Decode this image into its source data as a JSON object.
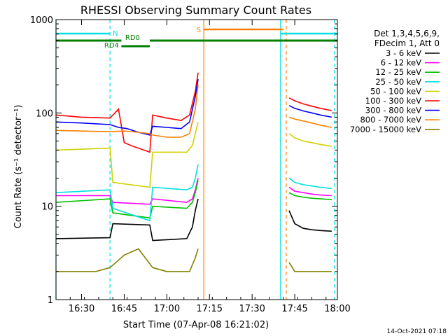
{
  "chart_data": {
    "type": "line",
    "title": "RHESSI Observing Summary Count Rates",
    "xlabel": "Start Time (07-Apr-08 16:21:02)",
    "ylabel": "Count Rate (s⁻¹ detector⁻¹)",
    "yscale": "log",
    "ylim": [
      1,
      1000
    ],
    "xlim": [
      "16:21",
      "18:00"
    ],
    "x_ticks": [
      "16:30",
      "16:45",
      "17:00",
      "17:15",
      "17:30",
      "17:45",
      "18:00"
    ],
    "y_ticks": [
      "1",
      "10",
      "100",
      "1000"
    ],
    "legend_placement": "right",
    "legend_header": [
      "Det 1,3,4,5,6,9,",
      "FDecim 1, Att 0"
    ],
    "series": [
      {
        "name": "3 - 6 keV",
        "color": "#000000",
        "x": [
          "16:21",
          "16:40",
          "16:41",
          "16:54",
          "16:55",
          "17:07",
          "17:09",
          "17:10",
          "17:11"
        ],
        "values": [
          4.5,
          4.6,
          6.5,
          6.3,
          4.3,
          4.5,
          6.0,
          9.0,
          12
        ],
        "x2": [
          "17:43",
          "17:45",
          "17:48",
          "17:51",
          "17:54",
          "17:58"
        ],
        "values2": [
          9.0,
          6.5,
          5.8,
          5.6,
          5.5,
          5.4
        ]
      },
      {
        "name": "6 - 12 keV",
        "color": "#ff00ff",
        "x": [
          "16:21",
          "16:40",
          "16:41",
          "16:54",
          "16:55",
          "17:07",
          "17:09",
          "17:10",
          "17:11"
        ],
        "values": [
          13,
          13,
          11,
          10.5,
          12,
          11,
          12,
          15,
          20
        ],
        "x2": [
          "17:43",
          "17:45",
          "17:48",
          "17:51",
          "17:54",
          "17:58"
        ],
        "values2": [
          16,
          14.5,
          14,
          13.5,
          13.2,
          13
        ]
      },
      {
        "name": "12 - 25 keV",
        "color": "#00c000",
        "x": [
          "16:21",
          "16:40",
          "16:41",
          "16:54",
          "16:55",
          "17:07",
          "17:09",
          "17:10",
          "17:11"
        ],
        "values": [
          11,
          12,
          8.5,
          7.5,
          10,
          9.5,
          11,
          14,
          19
        ],
        "x2": [
          "17:43",
          "17:45",
          "17:48",
          "17:51",
          "17:54",
          "17:58"
        ],
        "values2": [
          14,
          13,
          12.5,
          12.2,
          12,
          11.8
        ]
      },
      {
        "name": "25 - 50 keV",
        "color": "#00e0e0",
        "x": [
          "16:21",
          "16:40",
          "16:41",
          "16:54",
          "16:55",
          "17:07",
          "17:09",
          "17:10",
          "17:11"
        ],
        "values": [
          14,
          15,
          9.5,
          7,
          16,
          15,
          16,
          20,
          28
        ],
        "x2": [
          "17:43",
          "17:45",
          "17:48",
          "17:51",
          "17:54",
          "17:58"
        ],
        "values2": [
          20,
          18,
          17,
          16.5,
          16,
          15.5
        ]
      },
      {
        "name": "50 - 100 keV",
        "color": "#d0d000",
        "x": [
          "16:21",
          "16:40",
          "16:41",
          "16:54",
          "16:55",
          "17:07",
          "17:09",
          "17:10",
          "17:11"
        ],
        "values": [
          40,
          42,
          18,
          16,
          38,
          38,
          45,
          60,
          80
        ],
        "x2": [
          "17:43",
          "17:45",
          "17:48",
          "17:51",
          "17:54",
          "17:58"
        ],
        "values2": [
          60,
          54,
          50,
          48,
          46,
          44
        ]
      },
      {
        "name": "100 - 300 keV",
        "color": "#ff0000",
        "x": [
          "16:21",
          "16:30",
          "16:40",
          "16:43",
          "16:45",
          "16:48",
          "16:51",
          "16:54",
          "16:55",
          "17:00",
          "17:05",
          "17:08",
          "17:10",
          "17:11"
        ],
        "values": [
          95,
          90,
          88,
          110,
          48,
          44,
          41,
          38,
          95,
          88,
          83,
          95,
          170,
          270
        ],
        "x2": [
          "17:43",
          "17:45",
          "17:48",
          "17:51",
          "17:54",
          "17:58"
        ],
        "values2": [
          145,
          135,
          125,
          118,
          112,
          106
        ]
      },
      {
        "name": "300 - 800 keV",
        "color": "#0000ff",
        "x": [
          "16:21",
          "16:30",
          "16:40",
          "16:43",
          "16:46",
          "16:50",
          "16:54",
          "16:55",
          "17:00",
          "17:05",
          "17:08",
          "17:10",
          "17:11"
        ],
        "values": [
          80,
          78,
          75,
          70,
          68,
          62,
          58,
          72,
          70,
          68,
          80,
          150,
          230
        ],
        "x2": [
          "17:43",
          "17:45",
          "17:48",
          "17:51",
          "17:54",
          "17:58"
        ],
        "values2": [
          120,
          112,
          105,
          100,
          95,
          90
        ]
      },
      {
        "name": "800 - 7000 keV",
        "color": "#ff8000",
        "x": [
          "16:21",
          "16:30",
          "16:40",
          "16:45",
          "16:50",
          "16:54",
          "16:55",
          "17:00",
          "17:05",
          "17:08",
          "17:10",
          "17:11"
        ],
        "values": [
          65,
          64,
          63,
          64,
          62,
          60,
          58,
          55,
          55,
          60,
          110,
          200
        ],
        "x2": [
          "17:43",
          "17:45",
          "17:48",
          "17:51",
          "17:54",
          "17:58"
        ],
        "values2": [
          90,
          86,
          82,
          78,
          74,
          70
        ]
      },
      {
        "name": "7000 - 15000 keV",
        "color": "#808000",
        "x": [
          "16:21",
          "16:35",
          "16:40",
          "16:45",
          "16:50",
          "16:55",
          "17:00",
          "17:05",
          "17:08",
          "17:10",
          "17:11"
        ],
        "values": [
          2,
          2,
          2.2,
          3,
          3.5,
          2.2,
          2,
          2,
          2,
          2.8,
          3.5
        ],
        "x2": [
          "17:43",
          "17:45",
          "17:48",
          "17:51",
          "17:54",
          "17:58"
        ],
        "values2": [
          2.5,
          2,
          2,
          2,
          2,
          2
        ]
      }
    ],
    "gaps": [
      {
        "type": "night",
        "start": "17:12",
        "end": "17:41"
      }
    ],
    "annotations": [
      {
        "label": "N",
        "color": "#00e0e0",
        "start": "16:21",
        "end": "16:40",
        "start2": "17:40",
        "end2": "18:00"
      },
      {
        "label": "S",
        "color": "#ff8000",
        "start": "17:13",
        "end": "17:41"
      },
      {
        "label": "RD0",
        "color": "#008000",
        "start": "16:21",
        "end": "16:44",
        "start2": "16:54",
        "end2": "18:00"
      },
      {
        "label": "RD4",
        "color": "#008000",
        "start": "16:44",
        "end": "16:54"
      }
    ],
    "vlines": [
      {
        "x": "16:21",
        "color": "#00e0e0",
        "style": "solid"
      },
      {
        "x": "16:40",
        "color": "#00e0e0",
        "style": "dashed"
      },
      {
        "x": "17:13",
        "color": "#ff8000",
        "style": "solid"
      },
      {
        "x": "17:40",
        "color": "#00e0e0",
        "style": "solid"
      },
      {
        "x": "17:42",
        "color": "#ff8000",
        "style": "dashed"
      },
      {
        "x": "17:59",
        "color": "#00e0e0",
        "style": "dashed"
      }
    ],
    "footer": "14-Oct-2021 07:18"
  }
}
